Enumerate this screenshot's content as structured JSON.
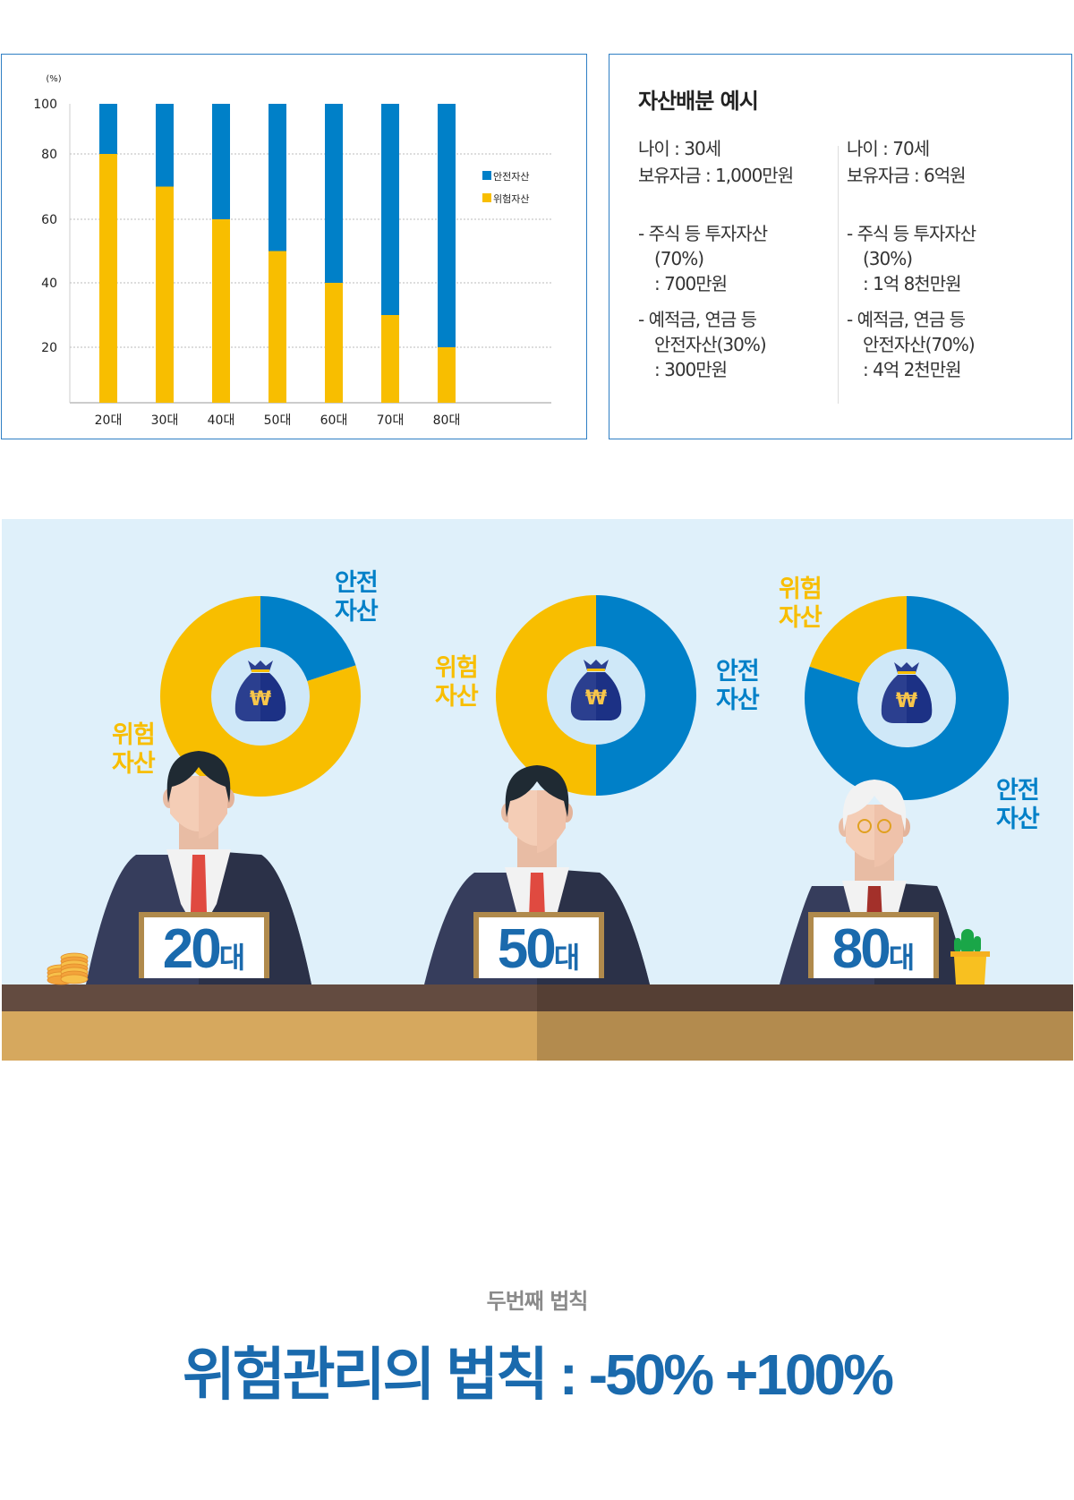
{
  "chart_data": {
    "type": "bar",
    "stacked": true,
    "unit_label": "(%)",
    "categories": [
      "20대",
      "30대",
      "40대",
      "50대",
      "60대",
      "70대",
      "80대"
    ],
    "series": [
      {
        "name": "위험자산",
        "color": "#f8be00",
        "values": [
          80,
          70,
          60,
          50,
          40,
          30,
          20
        ]
      },
      {
        "name": "안전자산",
        "color": "#0080c8",
        "values": [
          20,
          30,
          40,
          50,
          60,
          70,
          80
        ]
      }
    ],
    "yticks": [
      "20",
      "40",
      "60",
      "80",
      "100"
    ],
    "ylim": [
      0,
      100
    ],
    "grid": true,
    "legend_position": "right"
  },
  "info": {
    "title": "자산배분 예시",
    "columns": [
      {
        "age": "나이 : 30세",
        "funds": "보유자금 : 1,000만원",
        "risk": "- 주식 등 투자자산\n(70%)\n: 700만원",
        "safe": "- 예적금, 연금 등\n안전자산(30%)\n: 300만원"
      },
      {
        "age": "나이 : 70세",
        "funds": "보유자금 : 6억원",
        "risk": "- 주식 등 투자자산\n(30%)\n: 1억 8천만원",
        "safe": "- 예적금, 연금 등\n안전자산(70%)\n: 4억 2천만원"
      }
    ]
  },
  "illustration": {
    "colors": {
      "safe": "#0080c8",
      "risk": "#f8be00",
      "background": "#dff0fa"
    },
    "currency_symbol": "₩",
    "donuts": [
      {
        "safe_pct": 20,
        "risk_pct": 80,
        "safe_label": "안전\n자산",
        "risk_label": "위험\n자산"
      },
      {
        "safe_pct": 50,
        "risk_pct": 50,
        "safe_label": "안전\n자산",
        "risk_label": "위험\n자산"
      },
      {
        "safe_pct": 80,
        "risk_pct": 20,
        "safe_label": "안전\n자산",
        "risk_label": "위험\n자산"
      }
    ],
    "plates": [
      {
        "number": "20",
        "unit": "대"
      },
      {
        "number": "50",
        "unit": "대"
      },
      {
        "number": "80",
        "unit": "대"
      }
    ]
  },
  "rule": {
    "subtitle": "두번째 법칙",
    "title": "위험관리의 법칙 : -50% +100%"
  }
}
